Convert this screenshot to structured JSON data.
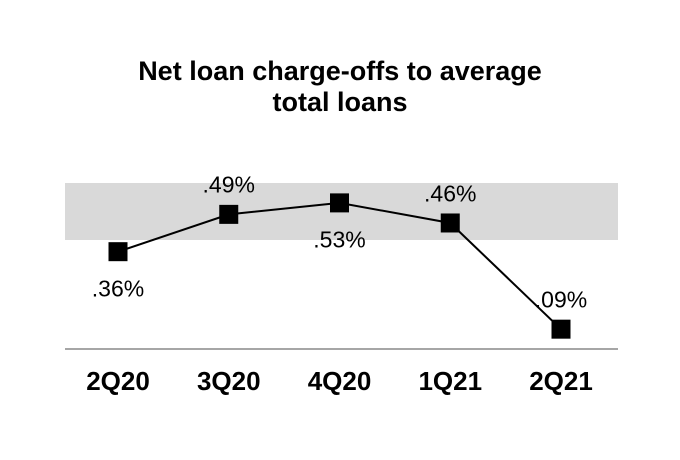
{
  "page": {
    "background_color": "#ffffff"
  },
  "chart_data": {
    "type": "line",
    "title": "Net loan charge-offs to average total loans",
    "title_lines": [
      "Net loan charge-offs to average",
      "total loans"
    ],
    "categories": [
      "2Q20",
      "3Q20",
      "4Q20",
      "1Q21",
      "2Q21"
    ],
    "values": [
      0.36,
      0.49,
      0.53,
      0.46,
      0.09
    ],
    "unit": "%",
    "data_labels": [
      ".36%",
      ".49%",
      ".53%",
      ".46%",
      ".09%"
    ],
    "data_label_positions": [
      "below",
      "above",
      "below",
      "above",
      "above"
    ],
    "series_color": "#000000",
    "marker_shape": "square",
    "marker_color": "#000000",
    "shaded_band": {
      "from": 0.4,
      "to": 0.6,
      "color": "#d9d9d9"
    },
    "baseline_axis_color": "#a6a6a6",
    "xlabel": "",
    "ylabel": "",
    "ylim": [
      0,
      0.65
    ],
    "grid": false,
    "legend": false
  }
}
